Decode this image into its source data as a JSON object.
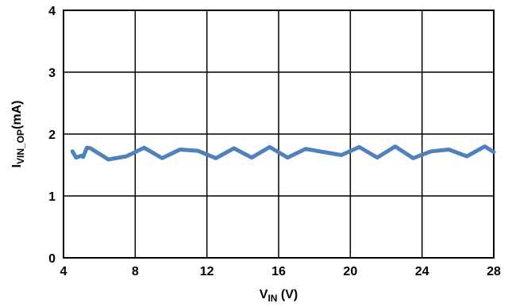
{
  "chart_data": {
    "type": "line",
    "title": "",
    "xlabel": {
      "main": "V",
      "sub": "IN",
      "suffix": " (V)"
    },
    "ylabel": {
      "main": "I",
      "sub": "VIN_OP",
      "suffix": "(mA)"
    },
    "xlim": [
      4,
      28
    ],
    "ylim": [
      0,
      4
    ],
    "xticks": [
      4,
      8,
      12,
      16,
      20,
      24,
      28
    ],
    "yticks": [
      0,
      1,
      2,
      3,
      4
    ],
    "xtick_labels": [
      "4",
      "8",
      "12",
      "16",
      "20",
      "24",
      "28"
    ],
    "ytick_labels": [
      "0",
      "1",
      "2",
      "3",
      "4"
    ],
    "grid": true,
    "legend": "none",
    "series": [
      {
        "color": "#4F81BD",
        "x": [
          4.5,
          4.7,
          4.9,
          5.0,
          5.1,
          5.3,
          5.5,
          6.5,
          7.5,
          8.5,
          9.5,
          10.5,
          11.5,
          12.5,
          13.5,
          14.5,
          15.5,
          16.5,
          17.5,
          18.5,
          19.5,
          20.5,
          21.5,
          22.5,
          23.5,
          24.5,
          25.5,
          26.5,
          27.5,
          28.0
        ],
        "y": [
          1.72,
          1.62,
          1.64,
          1.65,
          1.63,
          1.78,
          1.77,
          1.59,
          1.64,
          1.78,
          1.61,
          1.75,
          1.73,
          1.61,
          1.77,
          1.62,
          1.79,
          1.62,
          1.76,
          1.71,
          1.66,
          1.79,
          1.62,
          1.8,
          1.61,
          1.72,
          1.75,
          1.64,
          1.8,
          1.71
        ]
      }
    ]
  }
}
